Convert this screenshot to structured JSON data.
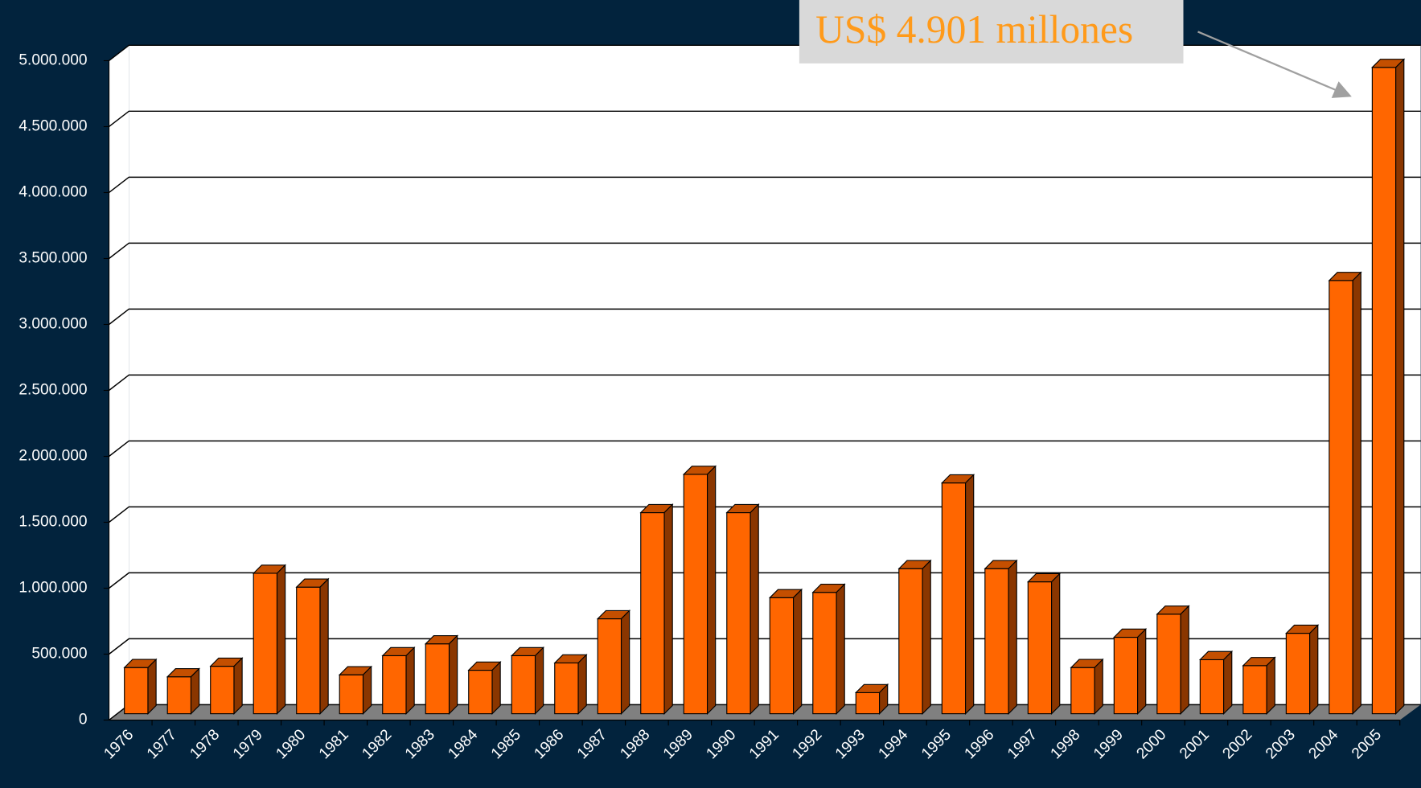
{
  "chart_data": {
    "type": "bar",
    "annotation": "US$ 4.901 millones",
    "categories": [
      "1976",
      "1977",
      "1978",
      "1979",
      "1980",
      "1981",
      "1982",
      "1983",
      "1984",
      "1985",
      "1986",
      "1987",
      "1988",
      "1989",
      "1990",
      "1991",
      "1992",
      "1993",
      "1994",
      "1995",
      "1996",
      "1997",
      "1998",
      "1999",
      "2000",
      "2001",
      "2002",
      "2003",
      "2004",
      "2005"
    ],
    "values": [
      350000,
      280000,
      360000,
      1065000,
      960000,
      295000,
      440000,
      530000,
      330000,
      440000,
      385000,
      720000,
      1525000,
      1815000,
      1525000,
      880000,
      920000,
      160000,
      1100000,
      1750000,
      1100000,
      1000000,
      350000,
      580000,
      755000,
      410000,
      365000,
      610000,
      3285000,
      4901000
    ],
    "color": "#ff6600",
    "ylim": [
      0,
      5000000
    ],
    "yticks": [
      0,
      {
        "value": 500000,
        "label": "500.000"
      },
      {
        "value": 1000000,
        "label": "1.000.000"
      },
      {
        "value": 1500000,
        "label": "1.500.000"
      },
      {
        "value": 2000000,
        "label": "2.000.000"
      },
      {
        "value": 2500000,
        "label": "2.500.000"
      },
      {
        "value": 3000000,
        "label": "3.000.000"
      },
      {
        "value": 3500000,
        "label": "3.500.000"
      },
      {
        "value": 4000000,
        "label": "4.000.000"
      },
      {
        "value": 4500000,
        "label": "4.500.000"
      },
      {
        "value": 5000000,
        "label": "5.000.000"
      }
    ],
    "grid": true
  }
}
